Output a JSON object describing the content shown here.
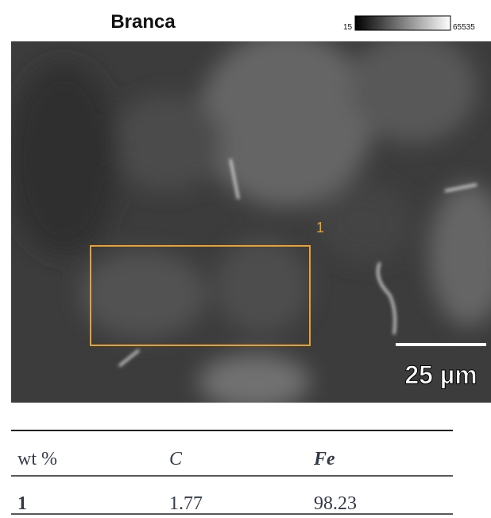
{
  "image": {
    "title": "Branca",
    "colorbar": {
      "min_label": "15",
      "max_label": "65535"
    },
    "region_label": "1",
    "scale_bar": "25 µm"
  },
  "table": {
    "header": [
      "wt %",
      "C",
      "Fe"
    ],
    "rows": [
      [
        "1",
        "1.77",
        "98.23"
      ]
    ]
  }
}
